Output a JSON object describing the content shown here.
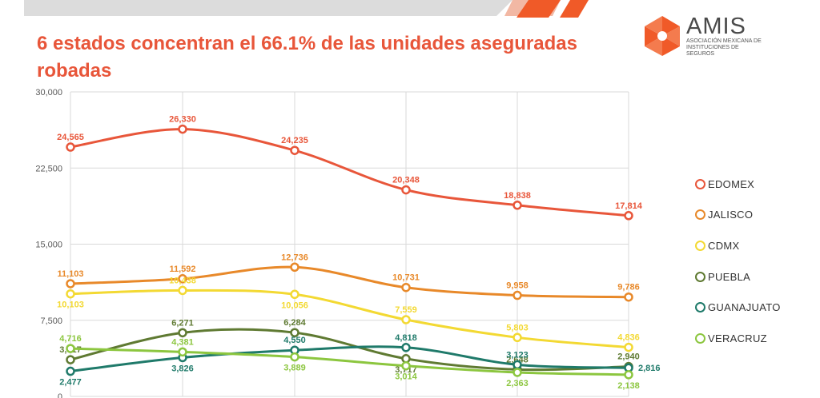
{
  "title": "6 estados concentran el 66.1% de las unidades aseguradas robadas",
  "logo": {
    "name": "AMIS",
    "subtitle": "ASOCIACIÓN MEXICANA DE INSTITUCIONES DE SEGUROS"
  },
  "colors": {
    "title": "#e8563a",
    "brand": "#f05a28",
    "topbar": "#d9d9d9"
  },
  "chart_data": {
    "type": "line",
    "title": "6 estados concentran el 66.1% de las unidades aseguradas robadas",
    "xlabel": "",
    "ylabel": "",
    "categories": [
      "",
      "",
      "",
      "",
      "",
      ""
    ],
    "ylim": [
      0,
      30000
    ],
    "yticks": [
      0,
      7500,
      15000,
      22500,
      30000
    ],
    "ytick_labels": [
      "0",
      "7,500",
      "15,000",
      "22,500",
      "30,000"
    ],
    "grid": true,
    "legend": "right",
    "series": [
      {
        "name": "EDOMEX",
        "color": "#e8563a",
        "values": [
          24565,
          26330,
          24235,
          20348,
          18838,
          17814
        ],
        "labels": [
          "24,565",
          "26,330",
          "24,235",
          "20,348",
          "18,838",
          "17,814"
        ]
      },
      {
        "name": "JALISCO",
        "color": "#e8892a",
        "values": [
          11103,
          11592,
          12736,
          10731,
          9958,
          9786
        ],
        "labels": [
          "11,103",
          "11,592",
          "12,736",
          "10,731",
          "9,958",
          "9,786"
        ]
      },
      {
        "name": "CDMX",
        "color": "#f3d933",
        "values": [
          10103,
          10438,
          10056,
          7559,
          5803,
          4836
        ],
        "labels": [
          "10,103",
          "10,438",
          "10,056",
          "7,559",
          "5,803",
          "4,836"
        ]
      },
      {
        "name": "PUEBLA",
        "color": "#5f7a32",
        "values": [
          3617,
          6271,
          6284,
          3717,
          2648,
          2940
        ],
        "labels": [
          "3,617",
          "6,271",
          "6,284",
          "3,717",
          "2,648",
          "2,940"
        ]
      },
      {
        "name": "GUANAJUATO",
        "color": "#1f7a6a",
        "values": [
          2477,
          3826,
          4550,
          4818,
          3123,
          2816
        ],
        "labels": [
          "2,477",
          "3,826",
          "4,550",
          "4,818",
          "3,123",
          "2,816"
        ]
      },
      {
        "name": "VERACRUZ",
        "color": "#8cc63f",
        "values": [
          4716,
          4381,
          3889,
          3014,
          2363,
          2138
        ],
        "labels": [
          "4,716",
          "4,381",
          "3,889",
          "3,014",
          "2,363",
          "2,138"
        ]
      }
    ]
  }
}
